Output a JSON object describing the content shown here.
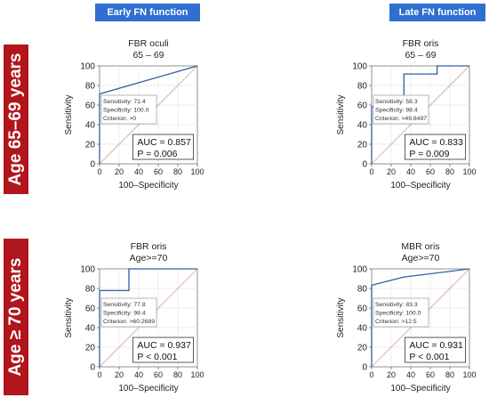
{
  "column_headers": [
    "Early FN function",
    "Late FN function"
  ],
  "row_labels": [
    "Age 65–69 years",
    "Age ≥ 70 years"
  ],
  "colors": {
    "header_bg": "#2f6fd0",
    "row_label_bg": "#b0161c",
    "roc_line": "#2f5fa8",
    "diagonal": "#d49a9a"
  },
  "chart_data": [
    {
      "type": "line",
      "title": "FBR oculi",
      "subtitle": "65 – 69",
      "xlabel": "100–Specificity",
      "ylabel": "Sensitivity",
      "xlim": [
        0,
        100
      ],
      "ylim": [
        0,
        100
      ],
      "xticks": [
        "0",
        "20",
        "40",
        "60",
        "80",
        "100"
      ],
      "yticks": [
        "0",
        "20",
        "40",
        "60",
        "80",
        "100"
      ],
      "series": [
        {
          "x": [
            0,
            0,
            0,
            100
          ],
          "y": [
            0,
            71.4,
            71.4,
            100
          ]
        }
      ],
      "criterion_box": [
        "Sensitivity: 71.4",
        "Specificity: 100.0",
        "Criterion: >0"
      ],
      "auc_text": "AUC = 0.857",
      "p_text": "P = 0.006"
    },
    {
      "type": "line",
      "title": "FBR oris",
      "subtitle": "65 – 69",
      "xlabel": "100–Specificity",
      "ylabel": "Sensitivity",
      "xlim": [
        0,
        100
      ],
      "ylim": [
        0,
        100
      ],
      "xticks": [
        "0",
        "20",
        "40",
        "60",
        "80",
        "100"
      ],
      "yticks": [
        "0",
        "20",
        "40",
        "60",
        "80",
        "100"
      ],
      "series": [
        {
          "x": [
            0,
            0,
            1.6,
            33,
            33,
            67,
            67,
            100
          ],
          "y": [
            0,
            58.3,
            58.3,
            58.3,
            91.7,
            91.7,
            100,
            100
          ]
        }
      ],
      "criterion_box": [
        "Sensitivity: 58.3",
        "Specificity: 98.4",
        "Criterion: >49.8497"
      ],
      "auc_text": "AUC = 0.833",
      "p_text": "P = 0.009"
    },
    {
      "type": "line",
      "title": "FBR oris",
      "subtitle": "Age>=70",
      "xlabel": "100–Specificity",
      "ylabel": "Sensitivity",
      "xlim": [
        0,
        100
      ],
      "ylim": [
        0,
        100
      ],
      "xticks": [
        "0",
        "20",
        "40",
        "60",
        "80",
        "100"
      ],
      "yticks": [
        "0",
        "20",
        "40",
        "60",
        "80",
        "100"
      ],
      "series": [
        {
          "x": [
            0,
            0,
            1.6,
            30,
            30,
            100
          ],
          "y": [
            0,
            77.8,
            77.8,
            77.8,
            100,
            100
          ]
        }
      ],
      "criterion_box": [
        "Sensitivity: 77.8",
        "Specificity: 98.4",
        "Criterion: >60.2689"
      ],
      "auc_text": "AUC = 0.937",
      "p_text": "P < 0.001"
    },
    {
      "type": "line",
      "title": "MBR oris",
      "subtitle": "Age>=70",
      "xlabel": "100–Specificity",
      "ylabel": "Sensitivity",
      "xlim": [
        0,
        100
      ],
      "ylim": [
        0,
        100
      ],
      "xticks": [
        "0",
        "20",
        "40",
        "60",
        "80",
        "100"
      ],
      "yticks": [
        "0",
        "20",
        "40",
        "60",
        "80",
        "100"
      ],
      "series": [
        {
          "x": [
            0,
            0,
            33,
            100
          ],
          "y": [
            0,
            83.3,
            91.7,
            100
          ]
        }
      ],
      "criterion_box": [
        "Sensitivity: 83.3",
        "Specificity: 100.0",
        "Criterion: >12.5"
      ],
      "auc_text": "AUC = 0.931",
      "p_text": "P < 0.001"
    }
  ]
}
